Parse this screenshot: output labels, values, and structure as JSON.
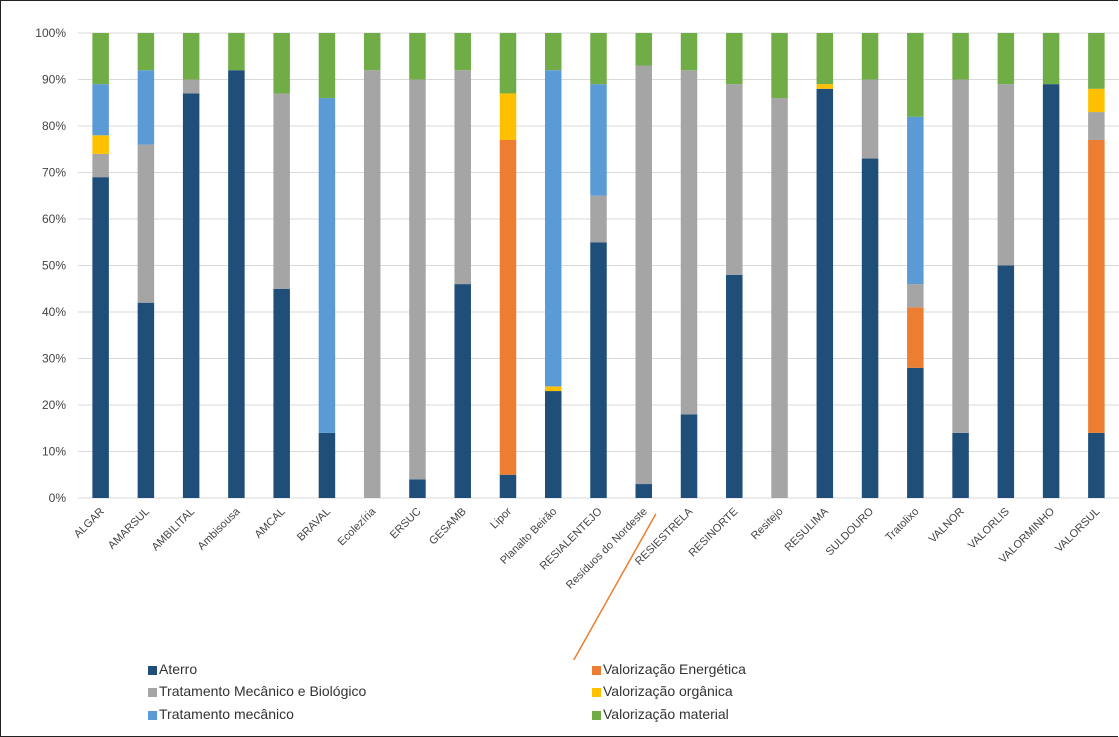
{
  "chart_data": {
    "type": "bar",
    "stacked": true,
    "normalized": true,
    "title": "",
    "xlabel": "",
    "ylabel": "",
    "ylim": [
      0,
      100
    ],
    "yticks": [
      "0%",
      "10%",
      "20%",
      "30%",
      "40%",
      "50%",
      "60%",
      "70%",
      "80%",
      "90%",
      "100%"
    ],
    "grid": true,
    "legend_position": "bottom",
    "categories": [
      "ALGAR",
      "AMARSUL",
      "AMBILITAL",
      "Ambisousa",
      "AMCAL",
      "BRAVAL",
      "Ecolezíria",
      "ERSUC",
      "GESAMB",
      "Lipor",
      "Planalto Beirão",
      "RESIALENTEJO",
      "Resíduos do Nordeste",
      "RESIESTRELA",
      "RESINORTE",
      "Resitejo",
      "RESULIMA",
      "SULDOURO",
      "Tratolixo",
      "VALNOR",
      "VALORLIS",
      "VALORMINHO",
      "VALORSUL"
    ],
    "series": [
      {
        "name": "Aterro",
        "color": "#1f4e79",
        "values": [
          69,
          42,
          87,
          92,
          45,
          14,
          0,
          4,
          46,
          5,
          23,
          55,
          3,
          18,
          48,
          0,
          88,
          73,
          28,
          14,
          50,
          89,
          14
        ]
      },
      {
        "name": "Valorização Energética",
        "color": "#ed7d31",
        "values": [
          0,
          0,
          0,
          0,
          0,
          0,
          0,
          0,
          0,
          72,
          0,
          0,
          0,
          0,
          0,
          0,
          0,
          0,
          13,
          0,
          0,
          0,
          63
        ]
      },
      {
        "name": "Tratamento Mecânico e Biológico",
        "color": "#a5a5a5",
        "values": [
          5,
          34,
          3,
          0,
          42,
          0,
          92,
          86,
          46,
          0,
          0,
          10,
          90,
          74,
          41,
          86,
          0,
          17,
          5,
          76,
          39,
          0,
          6
        ]
      },
      {
        "name": "Valorização orgânica",
        "color": "#ffc000",
        "values": [
          4,
          0,
          0,
          0,
          0,
          0,
          0,
          0,
          0,
          10,
          1,
          0,
          0,
          0,
          0,
          0,
          1,
          0,
          0,
          0,
          0,
          0,
          5
        ]
      },
      {
        "name": "Tratamento mecânico",
        "color": "#5b9bd5",
        "values": [
          11,
          16,
          0,
          0,
          0,
          72,
          0,
          0,
          0,
          0,
          68,
          24,
          0,
          0,
          0,
          0,
          0,
          0,
          36,
          0,
          0,
          0,
          0
        ]
      },
      {
        "name": "Valorização material",
        "color": "#70ad47",
        "values": [
          11,
          8,
          10,
          8,
          13,
          14,
          8,
          10,
          8,
          13,
          8,
          11,
          7,
          8,
          11,
          14,
          11,
          10,
          18,
          10,
          11,
          11,
          12
        ]
      }
    ],
    "legend_order": [
      "Aterro",
      "Valorização Energética",
      "Tratamento Mecânico e Biológico",
      "Valorização orgânica",
      "Tratamento mecânico",
      "Valorização material"
    ],
    "annotation_color": "#ed7d31"
  }
}
